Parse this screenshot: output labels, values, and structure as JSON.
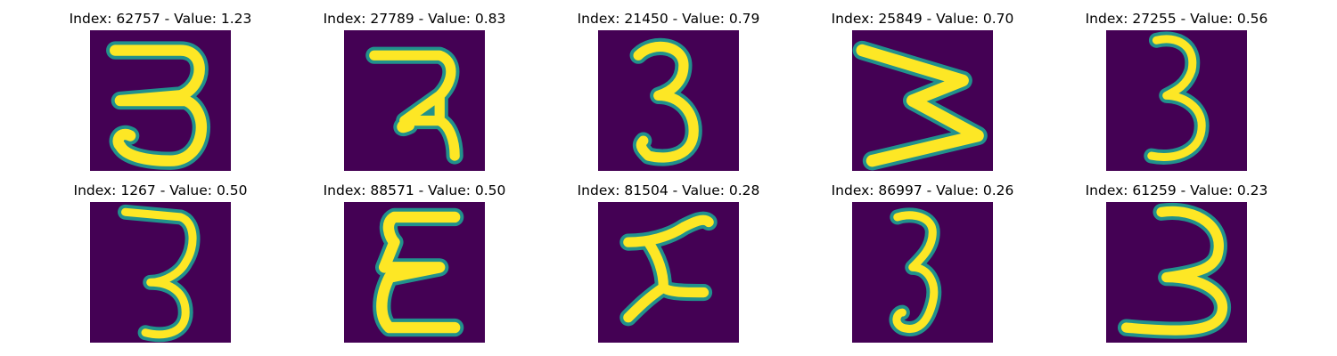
{
  "figure": {
    "colors": {
      "background": "#440154",
      "stroke_mid": "#21918c",
      "stroke_core": "#fde725"
    },
    "panels": [
      {
        "title": "Index: 62757 - Value: 1.23",
        "glyph": "3"
      },
      {
        "title": "Index: 27789 - Value: 0.83",
        "glyph": "3-angular"
      },
      {
        "title": "Index: 21450 - Value: 0.79",
        "glyph": "3"
      },
      {
        "title": "Index: 25849 - Value: 0.70",
        "glyph": "3-rotated-w"
      },
      {
        "title": "Index: 27255 - Value: 0.56",
        "glyph": "3"
      },
      {
        "title": "Index: 1267 - Value: 0.50",
        "glyph": "3"
      },
      {
        "title": "Index: 88571 - Value: 0.50",
        "glyph": "3-mirrored"
      },
      {
        "title": "Index: 81504 - Value: 0.28",
        "glyph": "3-rotated"
      },
      {
        "title": "Index: 86997 - Value: 0.26",
        "glyph": "3"
      },
      {
        "title": "Index: 61259 - Value: 0.23",
        "glyph": "3"
      }
    ]
  }
}
